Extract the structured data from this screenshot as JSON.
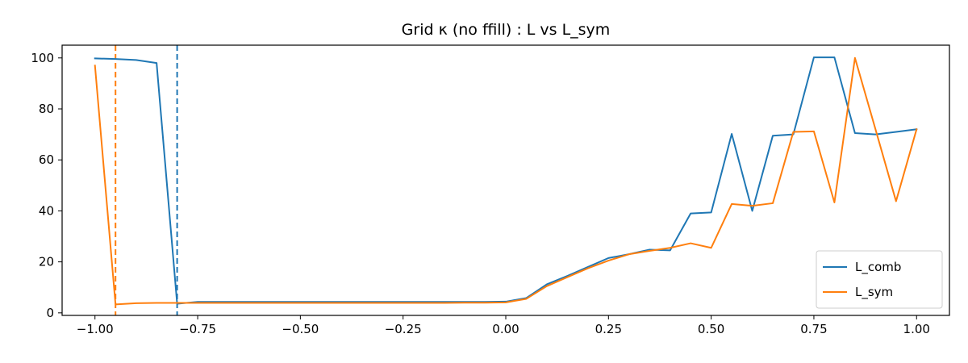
{
  "chart_data": {
    "type": "line",
    "title": "Grid κ (no ffill) : L vs L_sym",
    "xlabel": "",
    "ylabel": "",
    "xlim": [
      -1.08,
      1.08
    ],
    "ylim": [
      -1,
      105
    ],
    "xticks": [
      -1.0,
      -0.75,
      -0.5,
      -0.25,
      0.0,
      0.25,
      0.5,
      0.75,
      1.0
    ],
    "xtick_labels": [
      "−1.00",
      "−0.75",
      "−0.50",
      "−0.25",
      "0.00",
      "0.25",
      "0.50",
      "0.75",
      "1.00"
    ],
    "yticks": [
      0,
      20,
      40,
      60,
      80,
      100
    ],
    "ytick_labels": [
      "0",
      "20",
      "40",
      "60",
      "80",
      "100"
    ],
    "grid": false,
    "legend_position": "lower-right",
    "x": [
      -1.0,
      -0.95,
      -0.9,
      -0.85,
      -0.8,
      -0.75,
      -0.7,
      -0.65,
      -0.6,
      -0.55,
      -0.5,
      -0.45,
      -0.4,
      -0.35,
      -0.3,
      -0.25,
      -0.2,
      -0.15,
      -0.1,
      -0.05,
      0.0,
      0.05,
      0.1,
      0.15,
      0.2,
      0.25,
      0.3,
      0.35,
      0.4,
      0.45,
      0.5,
      0.55,
      0.6,
      0.65,
      0.7,
      0.75,
      0.8,
      0.85,
      0.9,
      0.95,
      1.0
    ],
    "series": [
      {
        "name": "L_comb",
        "color": "#1f77b4",
        "values": [
          99.8,
          99.6,
          99.2,
          98.0,
          3.6,
          4.3,
          4.3,
          4.3,
          4.3,
          4.3,
          4.3,
          4.3,
          4.3,
          4.3,
          4.3,
          4.3,
          4.3,
          4.3,
          4.3,
          4.3,
          4.4,
          5.8,
          11.2,
          14.5,
          18.0,
          21.5,
          23.0,
          24.8,
          24.5,
          39.0,
          39.4,
          70.2,
          40.0,
          69.5,
          70.0,
          100.2,
          100.2,
          70.5,
          70.0,
          71.0,
          72.0
        ]
      },
      {
        "name": "L_sym",
        "color": "#ff7f0e",
        "values": [
          97.0,
          3.3,
          3.8,
          3.9,
          3.9,
          3.9,
          3.9,
          3.9,
          3.9,
          3.9,
          3.9,
          3.9,
          3.9,
          3.9,
          3.9,
          3.9,
          3.9,
          3.9,
          4.0,
          4.0,
          4.1,
          5.5,
          10.5,
          14.0,
          17.5,
          20.5,
          23.0,
          24.3,
          25.5,
          27.3,
          25.5,
          42.7,
          42.0,
          43.0,
          71.0,
          71.2,
          43.3,
          100.0,
          72.0,
          43.8,
          72.0
        ]
      }
    ],
    "vlines": [
      {
        "x": -0.95,
        "color": "#ff7f0e",
        "style": "dashed"
      },
      {
        "x": -0.8,
        "color": "#1f77b4",
        "style": "dashed"
      }
    ]
  }
}
